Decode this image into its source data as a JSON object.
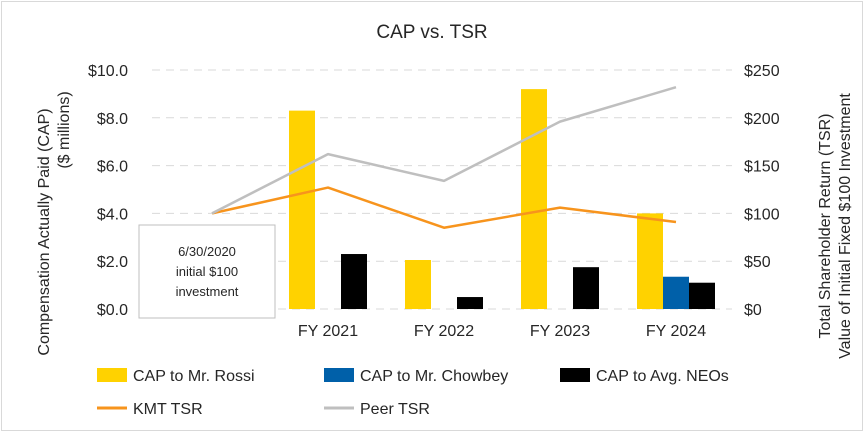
{
  "chart_data": {
    "type": "bar",
    "title": "CAP vs. TSR",
    "categories": [
      "FY 2021",
      "FY 2022",
      "FY 2023",
      "FY 2024"
    ],
    "y_left": {
      "label_line1": "Compensation Actually Paid (CAP)",
      "label_line2": "($ millions)",
      "range": [
        0,
        10
      ],
      "ticks": [
        0,
        2,
        4,
        6,
        8,
        10
      ],
      "tick_labels": [
        "$0.0",
        "$2.0",
        "$4.0",
        "$6.0",
        "$8.0",
        "$10.0"
      ]
    },
    "y_right": {
      "label_line1": "Total Shareholder Return (TSR)",
      "label_line2": "Value of Initial Fixed $100 Investment",
      "range": [
        0,
        250
      ],
      "ticks": [
        0,
        50,
        100,
        150,
        200,
        250
      ],
      "tick_labels": [
        "$0",
        "$50",
        "$100",
        "$150",
        "$200",
        "$250"
      ]
    },
    "bar_series": [
      {
        "name": "CAP to Mr. Rossi",
        "color": "#FFD200",
        "values": [
          8.3,
          2.05,
          9.2,
          4.0
        ]
      },
      {
        "name": "CAP to Mr. Chowbey",
        "color": "#0060A9",
        "values": [
          null,
          null,
          null,
          1.35
        ]
      },
      {
        "name": "CAP to Avg. NEOs",
        "color": "#000000",
        "values": [
          2.3,
          0.5,
          1.75,
          1.1
        ]
      }
    ],
    "line_series": [
      {
        "name": "KMT TSR",
        "color": "#F7941D",
        "baseline": 100,
        "values": [
          127,
          85,
          106,
          91
        ]
      },
      {
        "name": "Peer TSR",
        "color": "#BFBFBF",
        "baseline": 100,
        "values": [
          162,
          134,
          196,
          232
        ]
      }
    ],
    "annotation": {
      "lines": [
        "6/30/2020",
        "initial $100",
        "investment"
      ]
    },
    "grid": true,
    "legend_position": "bottom"
  }
}
